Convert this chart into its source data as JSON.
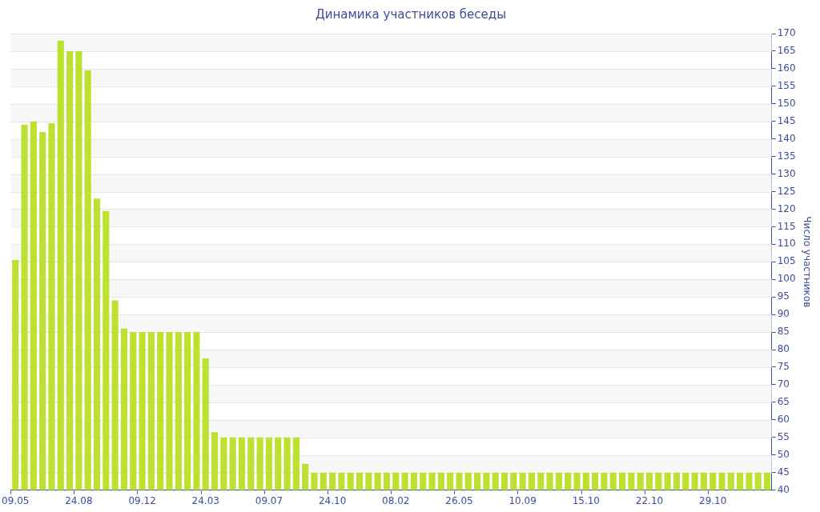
{
  "chart_data": {
    "type": "bar",
    "title": "Динамика участников беседы",
    "ylabel": "Число участников",
    "categories": [
      "09.05",
      null,
      null,
      null,
      null,
      null,
      null,
      "24.08",
      null,
      null,
      null,
      null,
      null,
      null,
      "09.12",
      null,
      null,
      null,
      null,
      null,
      null,
      "24.03",
      null,
      null,
      null,
      null,
      null,
      null,
      "09.07",
      null,
      null,
      null,
      null,
      null,
      null,
      "24.10",
      null,
      null,
      null,
      null,
      null,
      null,
      "08.02",
      null,
      null,
      null,
      null,
      null,
      null,
      "26.05",
      null,
      null,
      null,
      null,
      null,
      null,
      "10.09",
      null,
      null,
      null,
      null,
      null,
      null,
      "15.10",
      null,
      null,
      null,
      null,
      null,
      null,
      "22.10",
      null,
      null,
      null,
      null,
      null,
      null,
      "29.10",
      null,
      null,
      null,
      null,
      null,
      null
    ],
    "values": [
      105.5,
      144,
      145,
      142,
      144.5,
      168,
      165,
      165,
      159.5,
      123,
      119.5,
      94,
      86,
      85,
      85,
      85,
      85,
      85,
      85,
      85,
      85,
      77.5,
      56.5,
      55,
      55,
      55,
      55,
      55,
      55,
      55,
      55,
      55,
      47.5,
      45,
      45,
      45,
      45,
      45,
      45,
      45,
      45,
      45,
      45,
      45,
      45,
      45,
      45,
      45,
      45,
      45,
      45,
      45,
      45,
      45,
      45,
      45,
      45,
      45,
      45,
      45,
      45,
      45,
      45,
      45,
      45,
      45,
      45,
      45,
      45,
      45,
      45,
      45,
      45,
      45,
      45,
      45,
      45,
      45,
      45,
      45,
      45,
      45,
      45,
      45
    ],
    "color": "#bde131",
    "ylim": [
      40,
      170
    ],
    "yticks": [
      40,
      45,
      50,
      55,
      60,
      65,
      70,
      75,
      80,
      85,
      90,
      95,
      100,
      105,
      110,
      115,
      120,
      125,
      130,
      135,
      140,
      145,
      150,
      155,
      160,
      165,
      170
    ],
    "grid": "y",
    "legend": false
  }
}
